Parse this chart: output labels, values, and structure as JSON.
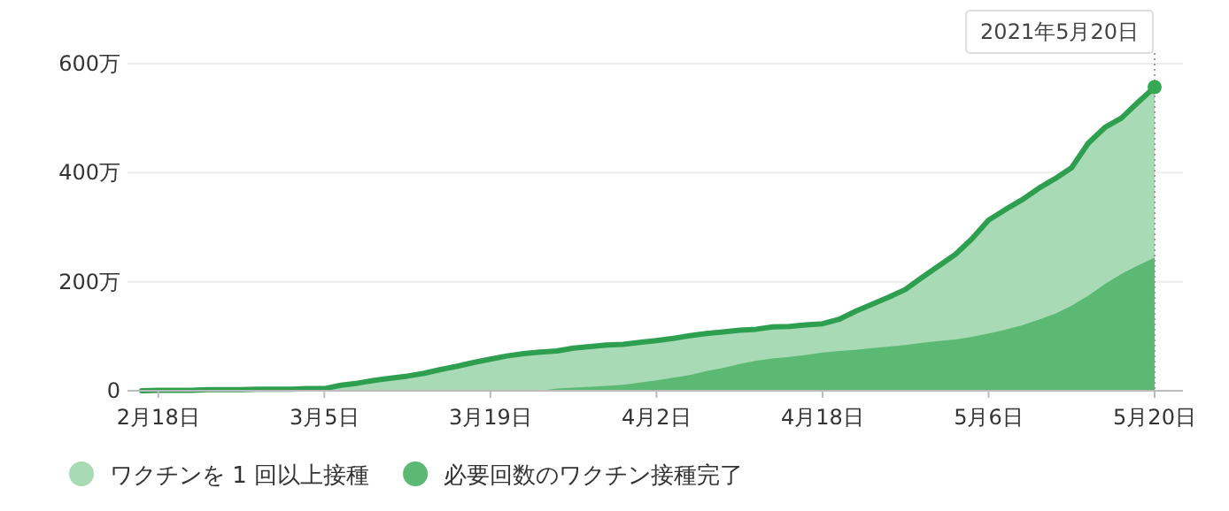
{
  "chart_data": {
    "type": "area",
    "categories": [
      null,
      "2月18日",
      null,
      null,
      null,
      null,
      null,
      null,
      null,
      null,
      null,
      "3月5日",
      null,
      null,
      null,
      null,
      null,
      null,
      null,
      null,
      null,
      "3月19日",
      null,
      null,
      null,
      null,
      null,
      null,
      null,
      null,
      null,
      "4月2日",
      null,
      null,
      null,
      null,
      null,
      null,
      null,
      null,
      null,
      "4月18日",
      null,
      null,
      null,
      null,
      null,
      null,
      null,
      null,
      null,
      "5月6日",
      null,
      null,
      null,
      null,
      null,
      null,
      null,
      null,
      null,
      "5月20日"
    ],
    "series": [
      {
        "name": "ワクチンを 1 回以上接種",
        "color": "#a8dab5",
        "values": [
          0,
          1,
          1,
          1,
          2,
          2,
          2,
          3,
          3,
          3,
          4,
          4,
          10,
          14,
          19,
          23,
          27,
          32,
          39,
          45,
          52,
          58,
          64,
          68,
          71,
          73,
          78,
          81,
          84,
          85,
          89,
          92,
          96,
          101,
          105,
          108,
          111,
          113,
          117,
          118,
          121,
          123,
          131,
          146,
          159,
          172,
          186,
          208,
          229,
          250,
          279,
          313,
          332,
          350,
          371,
          389,
          409,
          454,
          483,
          500,
          529,
          557
        ]
      },
      {
        "name": "必要回数のワクチン接種完了",
        "color": "#5bb974",
        "values": [
          0,
          0,
          0,
          0,
          0,
          0,
          0,
          0,
          0,
          0,
          0,
          0,
          0,
          0,
          0,
          0,
          0,
          0,
          0,
          0,
          0,
          0,
          0,
          0,
          0,
          4,
          6,
          7,
          9,
          11,
          15,
          19,
          24,
          29,
          36,
          42,
          49,
          55,
          59,
          62,
          66,
          70,
          73,
          75,
          78,
          81,
          84,
          88,
          91,
          94,
          99,
          105,
          112,
          120,
          130,
          141,
          156,
          174,
          196,
          214,
          230,
          244
        ]
      }
    ],
    "ylim": [
      0,
      600
    ],
    "yticks": [
      {
        "value": 0,
        "label": "0"
      },
      {
        "value": 200,
        "label": "200万"
      },
      {
        "value": 400,
        "label": "400万"
      },
      {
        "value": 600,
        "label": "600万"
      }
    ],
    "grid": "y",
    "legend": "bottom",
    "annotations": [
      {
        "text": "2021年5月20日",
        "x": "5月20日",
        "y": 557
      }
    ]
  }
}
